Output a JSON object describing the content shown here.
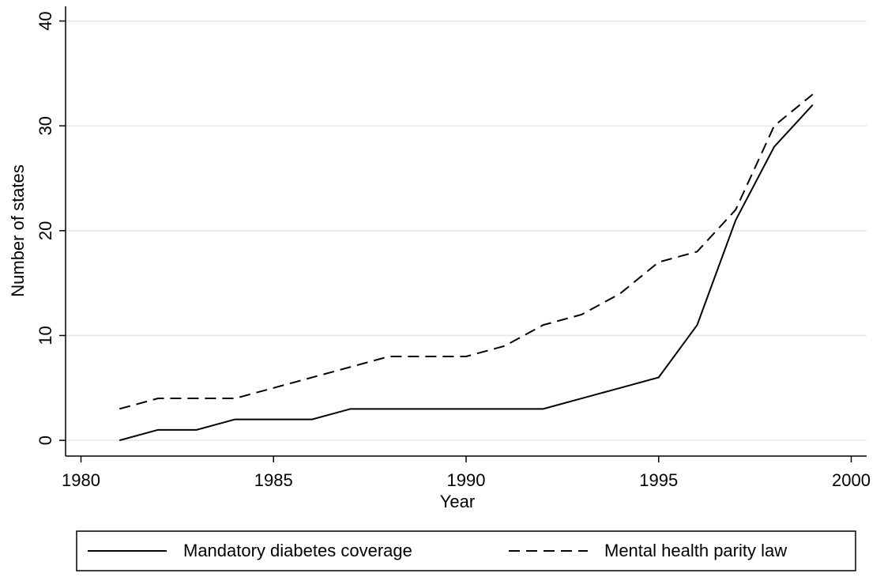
{
  "chart_data": {
    "type": "line",
    "x_label": "Year",
    "y_label": "Number of states",
    "x": [
      1981,
      1982,
      1983,
      1984,
      1985,
      1986,
      1987,
      1988,
      1989,
      1990,
      1991,
      1992,
      1993,
      1994,
      1995,
      1996,
      1997,
      1998,
      1999
    ],
    "series": [
      {
        "name": "Mandatory diabetes coverage",
        "color": "#000000",
        "dash": "solid",
        "values": [
          0,
          1,
          1,
          2,
          2,
          2,
          3,
          3,
          3,
          3,
          3,
          3,
          4,
          5,
          6,
          11,
          21,
          28,
          32
        ]
      },
      {
        "name": "Mental health parity law",
        "color": "#000000",
        "dash": "dashed",
        "values": [
          3,
          4,
          4,
          4,
          5,
          6,
          7,
          8,
          8,
          8,
          9,
          11,
          12,
          14,
          17,
          18,
          22,
          30,
          33
        ]
      }
    ],
    "xlim": [
      1979.6,
      2000.4
    ],
    "xticks": [
      1980,
      1985,
      1990,
      1995,
      2000
    ],
    "ylim": [
      -1.5,
      41.4
    ],
    "yticks": [
      0,
      10,
      20,
      30,
      40
    ],
    "grid": true,
    "legend": "bottom"
  }
}
